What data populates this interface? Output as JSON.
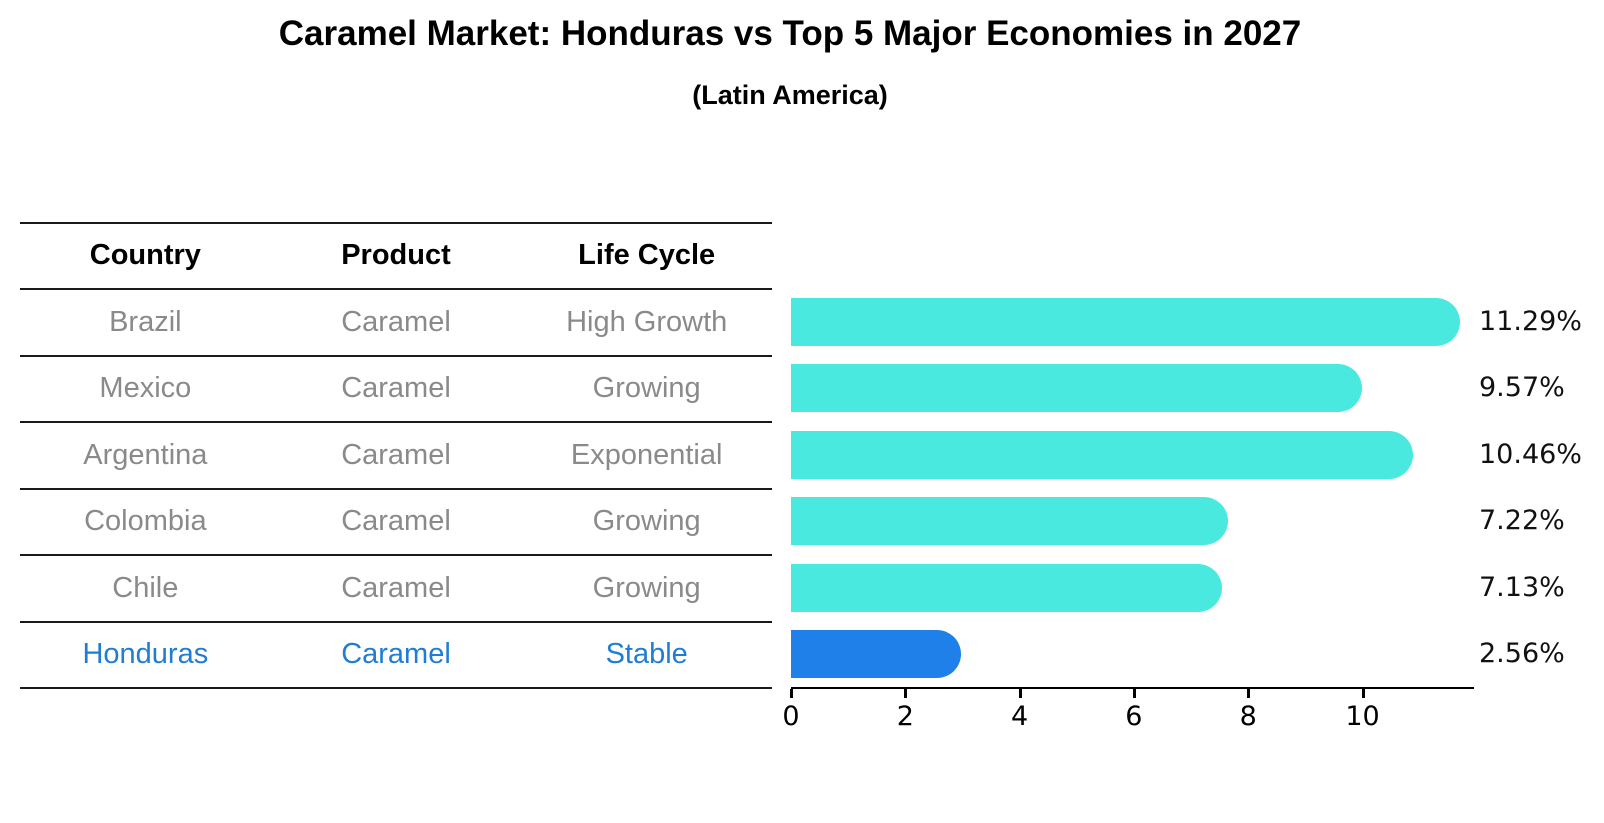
{
  "header": {
    "title": "Caramel Market: Honduras vs Top 5 Major Economies in 2027",
    "subtitle": "(Latin America)"
  },
  "colors": {
    "bar_default": "#49e9e0",
    "bar_highlight": "#1e80e8",
    "highlight_text": "#1f7dd4",
    "muted_text": "#8a8a8a",
    "axis_text": "#111111"
  },
  "table": {
    "headers": [
      "Country",
      "Product",
      "Life Cycle"
    ],
    "rows": [
      {
        "country": "Brazil",
        "product": "Caramel",
        "life_cycle": "High Growth",
        "highlight": false
      },
      {
        "country": "Mexico",
        "product": "Caramel",
        "life_cycle": "Growing",
        "highlight": false
      },
      {
        "country": "Argentina",
        "product": "Caramel",
        "life_cycle": "Exponential",
        "highlight": false
      },
      {
        "country": "Colombia",
        "product": "Caramel",
        "life_cycle": "Growing",
        "highlight": false
      },
      {
        "country": "Chile",
        "product": "Caramel",
        "life_cycle": "Growing",
        "highlight": false
      },
      {
        "country": "Honduras",
        "product": "Caramel",
        "life_cycle": "Stable",
        "highlight": true
      }
    ]
  },
  "chart_data": {
    "type": "bar",
    "orientation": "horizontal",
    "title": "Caramel Market: Honduras vs Top 5 Major Economies in 2027",
    "subtitle": "(Latin America)",
    "categories": [
      "Brazil",
      "Mexico",
      "Argentina",
      "Colombia",
      "Chile",
      "Honduras"
    ],
    "values": [
      11.29,
      9.57,
      10.46,
      7.22,
      7.13,
      2.56
    ],
    "value_labels": [
      "11.29%",
      "9.57%",
      "10.46%",
      "7.22%",
      "7.13%",
      "2.56%"
    ],
    "highlight_index": 5,
    "xlabel": "",
    "ylabel": "",
    "xlim": [
      0,
      11.93
    ],
    "xticks": [
      0,
      2,
      4,
      6,
      8,
      10
    ],
    "grid": false,
    "legend": false
  }
}
